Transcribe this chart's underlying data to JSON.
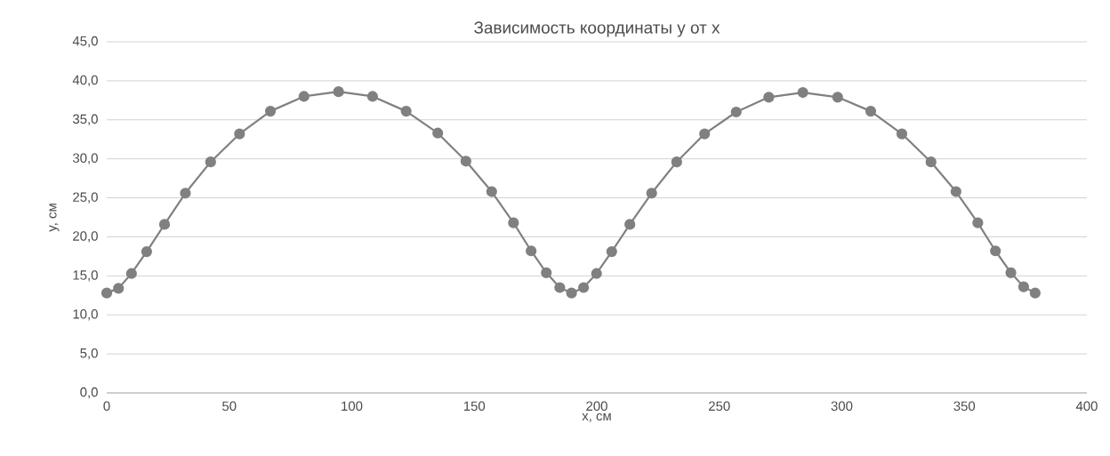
{
  "chart_data": {
    "type": "line",
    "title": "Зависимость координаты y от x",
    "xlabel": "x, см",
    "ylabel": "y, см",
    "series": [
      {
        "color": "#808080",
        "marker": "circle",
        "line_style": "solid",
        "x": [
          0,
          4.8,
          10.1,
          16.3,
          23.6,
          32.1,
          42.4,
          54.2,
          66.8,
          80.5,
          94.6,
          108.5,
          122.2,
          135.1,
          146.6,
          157.1,
          166.0,
          173.2,
          179.4,
          184.9,
          189.7,
          194.6,
          199.9,
          206.1,
          213.5,
          222.4,
          232.6,
          244.0,
          256.9,
          270.2,
          284.1,
          298.3,
          311.8,
          324.5,
          336.4,
          346.6,
          355.5,
          362.7,
          369.0,
          374.2,
          378.9
        ],
        "values": [
          12.8,
          13.4,
          15.3,
          18.1,
          21.6,
          25.6,
          29.6,
          33.2,
          36.1,
          38.0,
          38.6,
          38.0,
          36.1,
          33.3,
          29.7,
          25.8,
          21.8,
          18.2,
          15.4,
          13.5,
          12.8,
          13.5,
          15.3,
          18.1,
          21.6,
          25.6,
          29.6,
          33.2,
          36.0,
          37.9,
          38.5,
          37.9,
          36.1,
          33.2,
          29.6,
          25.8,
          21.8,
          18.2,
          15.4,
          13.6,
          12.8
        ]
      }
    ],
    "xlim": [
      0,
      400
    ],
    "xticks": [
      0,
      50,
      100,
      150,
      200,
      250,
      300,
      350,
      400
    ],
    "ylim": [
      0,
      45
    ],
    "yticks": [
      {
        "value": 0,
        "label": "0,0"
      },
      {
        "value": 5,
        "label": "5,0"
      },
      {
        "value": 10,
        "label": "10,0"
      },
      {
        "value": 15,
        "label": "15,0"
      },
      {
        "value": 20,
        "label": "20,0"
      },
      {
        "value": 25,
        "label": "25,0"
      },
      {
        "value": 30,
        "label": "30,0"
      },
      {
        "value": 35,
        "label": "35,0"
      },
      {
        "value": 40,
        "label": "40,0"
      },
      {
        "value": 45,
        "label": "45,0"
      }
    ],
    "grid": "y"
  }
}
